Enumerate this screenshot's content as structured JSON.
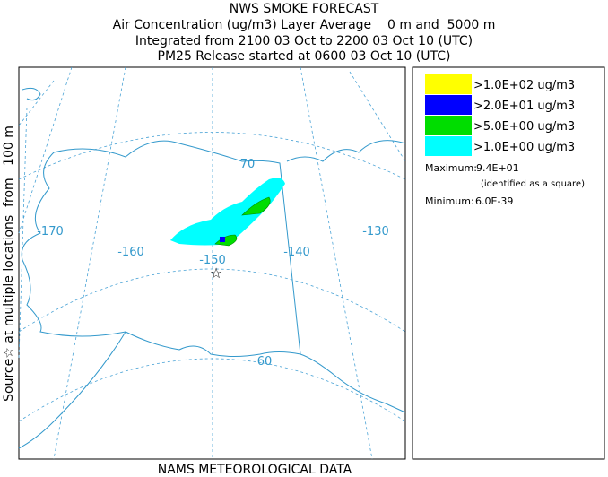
{
  "title": "NWS SMOKE FORECAST",
  "subtitle_lines": [
    "Air Concentration (ug/m3) Layer Average    0 m and  5000 m",
    "Integrated from 2100 03 Oct to 2200 03 Oct 10 (UTC)",
    "PM25 Release started at 0600 03 Oct 10 (UTC)"
  ],
  "side_label": "Source☆ at multiple locations  from   100 m",
  "footer": "NAMS METEOROLOGICAL DATA",
  "map_labels": [
    "-170",
    "-160",
    "-150",
    "-140",
    "-130",
    "70",
    "60"
  ],
  "legend": [
    {
      "label": ">1.0E+02 ug/m3",
      "color": "#ffff00"
    },
    {
      "label": ">2.0E+01 ug/m3",
      "color": "#0000ff"
    },
    {
      "label": ">5.0E+00 ug/m3",
      "color": "#00dd00"
    },
    {
      "label": ">1.0E+00 ug/m3",
      "color": "#00ffff"
    }
  ],
  "maximum": {
    "label": "Maximum:",
    "value": "9.4E+01",
    "note": "(identified as a square)"
  },
  "minimum": {
    "label": "Minimum:",
    "value": "6.0E-39"
  }
}
